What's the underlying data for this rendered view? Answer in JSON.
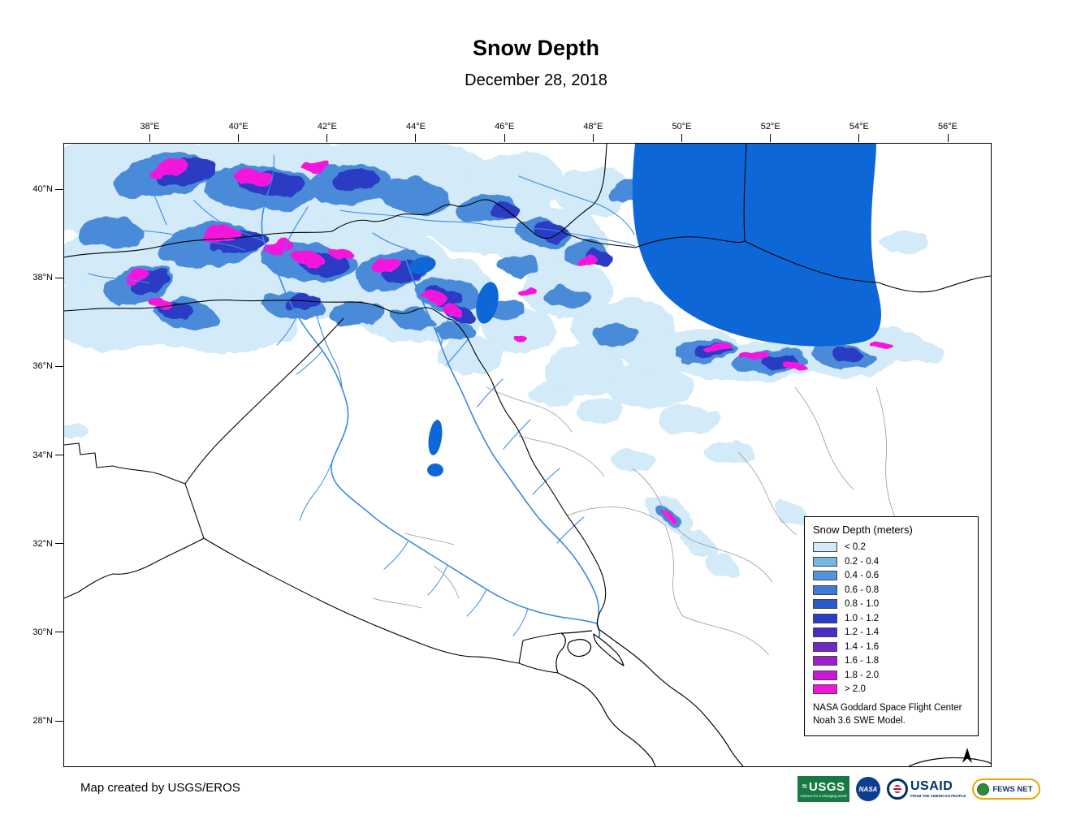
{
  "header": {
    "title": "Snow Depth",
    "date": "December 28, 2018"
  },
  "axes": {
    "longitude": [
      "38°E",
      "40°E",
      "42°E",
      "44°E",
      "46°E",
      "48°E",
      "50°E",
      "52°E",
      "54°E",
      "56°E"
    ],
    "latitude": [
      "40°N",
      "38°N",
      "36°N",
      "34°N",
      "32°N",
      "30°N",
      "28°N"
    ]
  },
  "legend": {
    "title": "Snow Depth (meters)",
    "entries": [
      {
        "label": "< 0.2",
        "color": "#D3EAF8"
      },
      {
        "label": "0.2 - 0.4",
        "color": "#74B6E6"
      },
      {
        "label": "0.4 - 0.6",
        "color": "#5294DD"
      },
      {
        "label": "0.6 - 0.8",
        "color": "#3D79D6"
      },
      {
        "label": "0.8 - 1.0",
        "color": "#2A5ACD"
      },
      {
        "label": "1.0 - 1.2",
        "color": "#2A3BC4"
      },
      {
        "label": "1.2 - 1.4",
        "color": "#4A2BC6"
      },
      {
        "label": "1.4 - 1.6",
        "color": "#7425CB"
      },
      {
        "label": "1.6 - 1.8",
        "color": "#A01ED0"
      },
      {
        "label": "1.8 - 2.0",
        "color": "#CB17D6"
      },
      {
        "label": "> 2.0",
        "color": "#F512DE"
      }
    ],
    "note_line1": "NASA Goddard Space Flight Center",
    "note_line2": "Noah 3.6 SWE Model."
  },
  "map_colors": {
    "snow_light": "#D3EAF8",
    "snow_medium": "#4A8BD9",
    "snow_deep": "#2A3BC4",
    "snow_extreme": "#F512DE",
    "water": "#0E67D6",
    "river": "#3B8AE0"
  },
  "footer": {
    "credit": "Map created by USGS/EROS"
  },
  "logos": {
    "usgs": {
      "name": "USGS",
      "tagline": "science for a changing world"
    },
    "nasa": {
      "name": "NASA"
    },
    "usaid": {
      "name": "USAID",
      "tagline": "FROM THE AMERICAN PEOPLE"
    },
    "fewsnet": {
      "name": "FEWS NET"
    }
  }
}
